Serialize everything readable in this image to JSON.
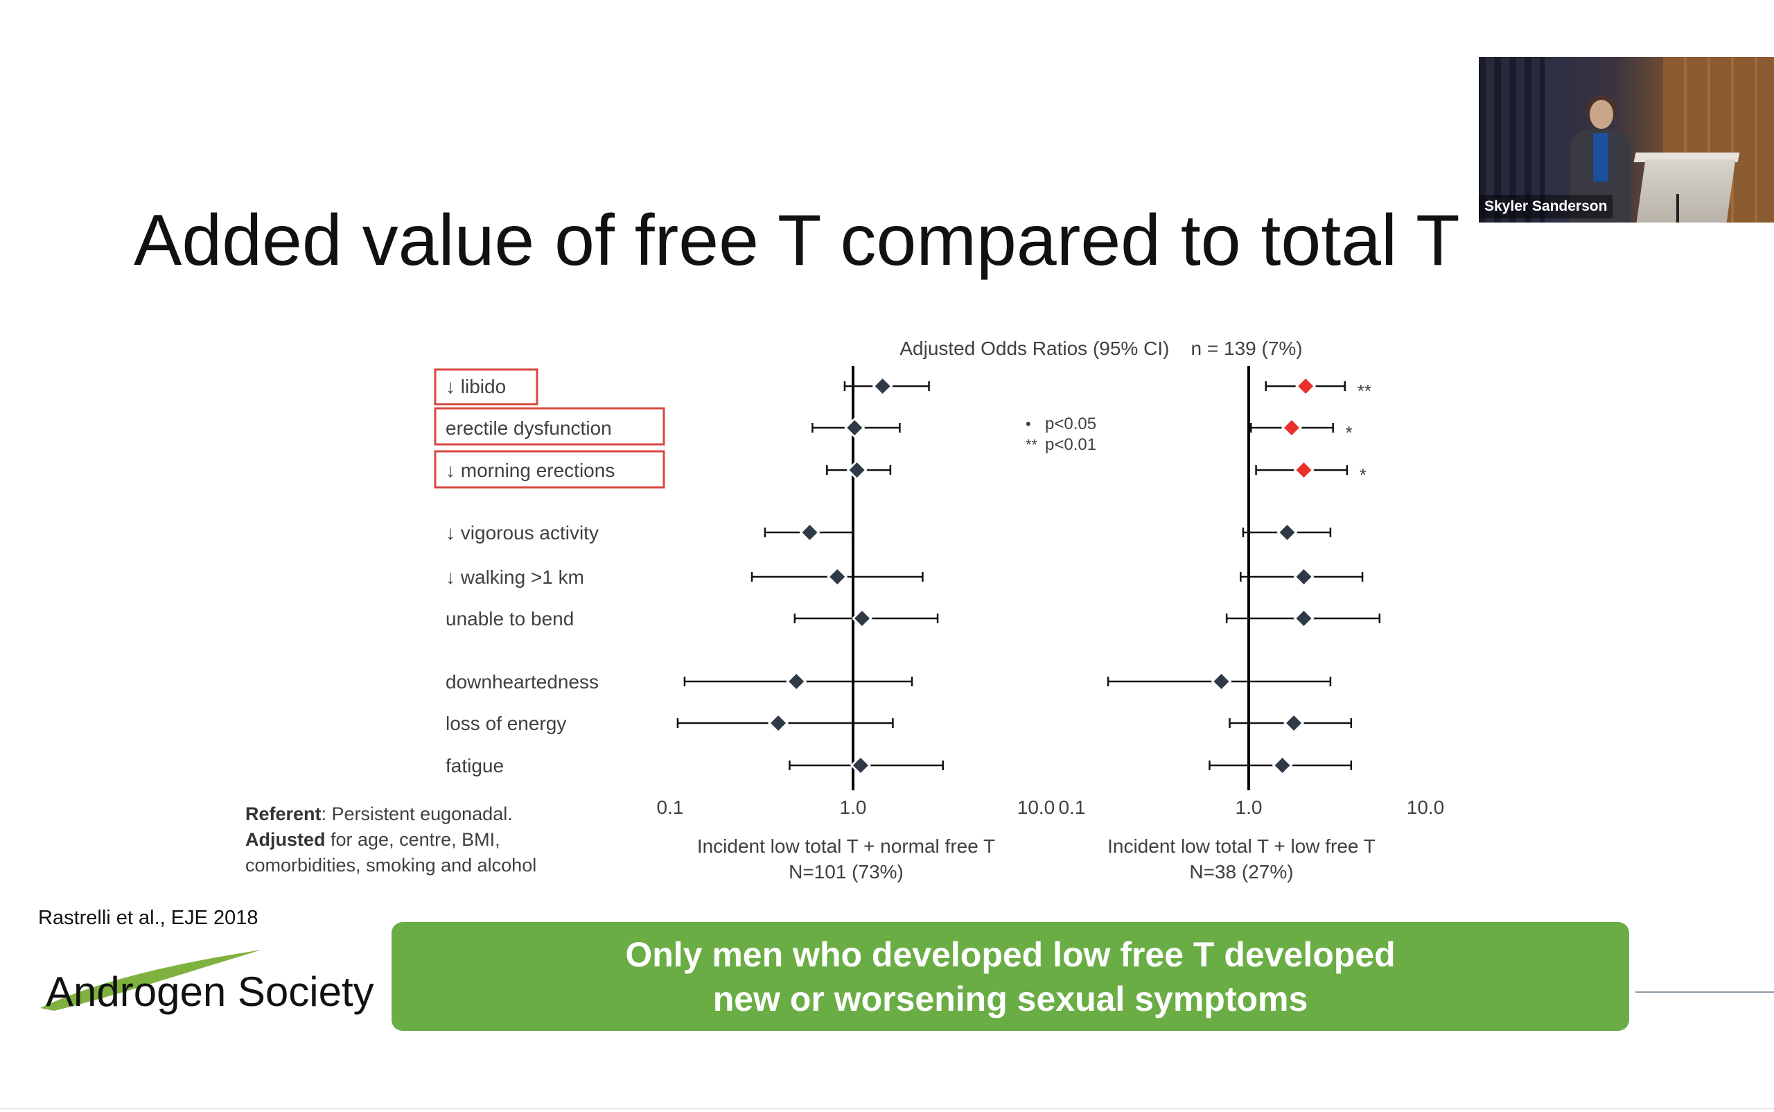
{
  "slide": {
    "title": "Added value of free T compared to total T",
    "citation": "Rastrelli et al., EJE 2018",
    "logo_text": "Androgen Society",
    "banner": {
      "line1": "Only men who developed low free T developed",
      "line2": "new or worsening sexual symptoms",
      "color": "#6aad45"
    },
    "notes": {
      "referent_label": "Referent",
      "referent_text": ": Persistent eugonadal.",
      "adjusted_label": "Adjusted",
      "adjusted_text": " for age, centre, BMI,",
      "adjusted_text2": "comorbidities, smoking and alcohol"
    },
    "significance_legend": {
      "single_mark": "•",
      "single_text": "p<0.05",
      "double_mark": "**",
      "double_text": "p<0.01"
    }
  },
  "video": {
    "speaker_name": "Skyler Sanderson"
  },
  "chart_data": {
    "type": "forest",
    "title": "Adjusted Odds Ratios (95% CI)    n = 139 (7%)",
    "x_scale": "log",
    "xlim": [
      0.1,
      10.0
    ],
    "tick_labels": [
      "0.1",
      "1.0",
      "10.0"
    ],
    "reference_line": 1.0,
    "marker_colors": {
      "normal": "#2f3a46",
      "significant": "#e8312a"
    },
    "highlight_box_color": "#d9473e",
    "rows": [
      {
        "label": "↓ libido",
        "boxed": true
      },
      {
        "label": "erectile dysfunction",
        "boxed": true
      },
      {
        "label": "↓ morning erections",
        "boxed": true
      },
      {
        "label": "↓ vigorous activity",
        "boxed": false
      },
      {
        "label": "↓ walking >1 km",
        "boxed": false
      },
      {
        "label": "unable to bend",
        "boxed": false
      },
      {
        "label": "downheartedness",
        "boxed": false
      },
      {
        "label": "loss of energy",
        "boxed": false
      },
      {
        "label": "fatigue",
        "boxed": false
      }
    ],
    "panels": [
      {
        "xlabel": "Incident low total T + normal free T",
        "n_label": "N=101 (73%)",
        "points": [
          {
            "or": 1.45,
            "lo": 0.9,
            "hi": 2.6,
            "sig": ""
          },
          {
            "or": 1.02,
            "lo": 0.6,
            "hi": 1.8,
            "sig": ""
          },
          {
            "or": 1.05,
            "lo": 0.72,
            "hi": 1.6,
            "sig": ""
          },
          {
            "or": 0.58,
            "lo": 0.33,
            "hi": 1.0,
            "sig": ""
          },
          {
            "or": 0.82,
            "lo": 0.28,
            "hi": 2.4,
            "sig": ""
          },
          {
            "or": 1.12,
            "lo": 0.48,
            "hi": 2.9,
            "sig": ""
          },
          {
            "or": 0.49,
            "lo": 0.12,
            "hi": 2.1,
            "sig": ""
          },
          {
            "or": 0.39,
            "lo": 0.11,
            "hi": 1.65,
            "sig": ""
          },
          {
            "or": 1.1,
            "lo": 0.45,
            "hi": 3.1,
            "sig": ""
          }
        ]
      },
      {
        "xlabel": "Incident low total T + low free T",
        "n_label": "N=38 (27%)",
        "points": [
          {
            "or": 2.1,
            "lo": 1.25,
            "hi": 3.5,
            "sig": "**"
          },
          {
            "or": 1.75,
            "lo": 1.03,
            "hi": 3.0,
            "sig": "*"
          },
          {
            "or": 2.05,
            "lo": 1.1,
            "hi": 3.6,
            "sig": "*"
          },
          {
            "or": 1.65,
            "lo": 0.93,
            "hi": 2.9,
            "sig": ""
          },
          {
            "or": 2.05,
            "lo": 0.9,
            "hi": 4.4,
            "sig": ""
          },
          {
            "or": 2.05,
            "lo": 0.75,
            "hi": 5.5,
            "sig": ""
          },
          {
            "or": 0.7,
            "lo": 0.16,
            "hi": 2.9,
            "sig": ""
          },
          {
            "or": 1.8,
            "lo": 0.78,
            "hi": 3.8,
            "sig": ""
          },
          {
            "or": 1.55,
            "lo": 0.6,
            "hi": 3.8,
            "sig": ""
          }
        ]
      }
    ]
  }
}
